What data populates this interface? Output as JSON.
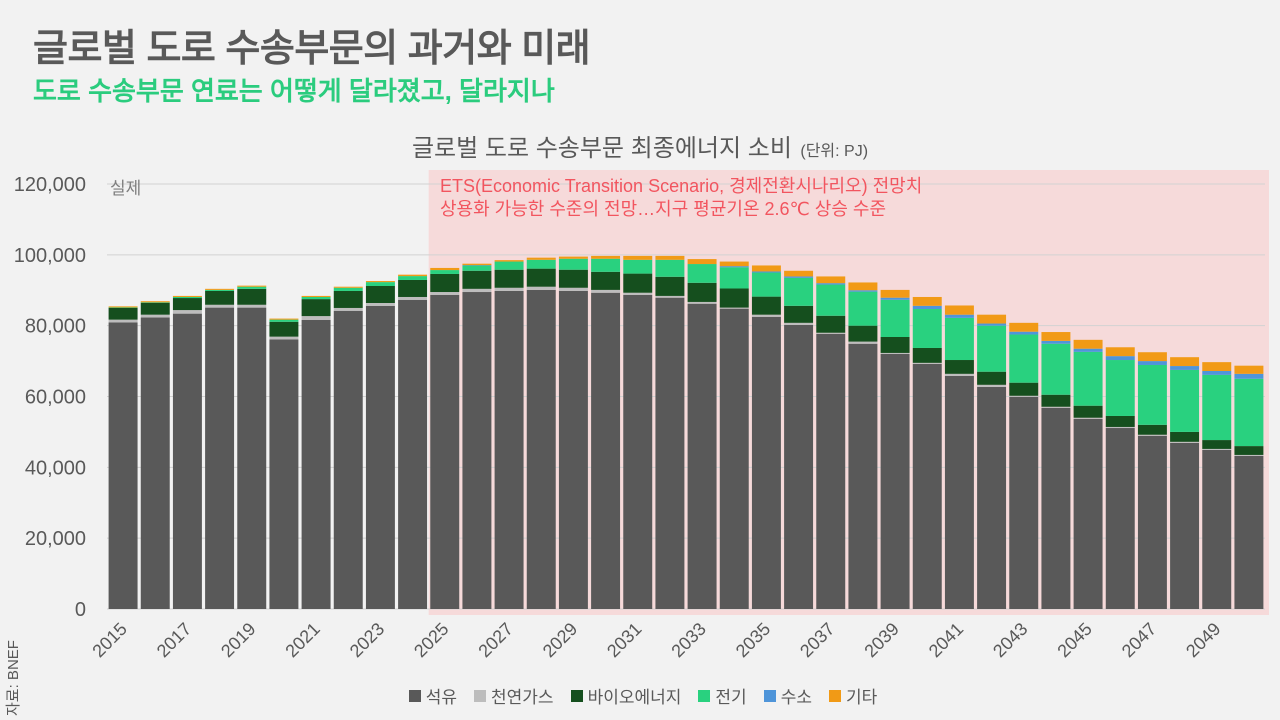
{
  "header": {
    "title": "글로벌 도로 수송부문의 과거와 미래",
    "subtitle": "도로 수송부문 연료는 어떻게 달라졌고, 달라지나"
  },
  "chart_data": {
    "type": "bar",
    "stacked": true,
    "title": "글로벌 도로 수송부문 최종에너지 소비",
    "unit_label": "(단위: PJ)",
    "xlabel": "",
    "ylabel": "",
    "ylim": [
      0,
      120000
    ],
    "yticks": [
      0,
      20000,
      40000,
      60000,
      80000,
      100000,
      120000
    ],
    "ytick_labels": [
      "0",
      "20,000",
      "40,000",
      "60,000",
      "80,000",
      "100,000",
      "120,000"
    ],
    "grid": true,
    "legend_position": "bottom",
    "x": [
      2015,
      2016,
      2017,
      2018,
      2019,
      2020,
      2021,
      2022,
      2023,
      2024,
      2025,
      2026,
      2027,
      2028,
      2029,
      2030,
      2031,
      2032,
      2033,
      2034,
      2035,
      2036,
      2037,
      2038,
      2039,
      2040,
      2041,
      2042,
      2043,
      2044,
      2045,
      2046,
      2047,
      2048,
      2049,
      2050
    ],
    "xtick_labels": [
      "2015",
      "2017",
      "2019",
      "2021",
      "2023",
      "2025",
      "2027",
      "2029",
      "2031",
      "2033",
      "2035",
      "2037",
      "2039",
      "2041",
      "2043",
      "2045",
      "2047",
      "2049"
    ],
    "forecast_start": 2025,
    "forecast_region_color": "#f6dada",
    "grid_color": "#d2d2d2",
    "annotations": {
      "actual_label": "실제",
      "forecast_line1": "ETS(Economic Transition Scenario, 경제전환시나리오) 전망치",
      "forecast_line2": "상용화 가능한 수준의 전망…지구 평균기온 2.6℃ 상승 수준"
    },
    "series": [
      {
        "key": "oil",
        "name": "석유",
        "color": "#595959",
        "values": [
          80900,
          82300,
          83400,
          85100,
          85100,
          76100,
          81600,
          84200,
          85600,
          87300,
          88700,
          89500,
          89800,
          90100,
          89800,
          89300,
          88700,
          87900,
          86200,
          84800,
          82500,
          80200,
          77700,
          74900,
          72000,
          69200,
          65800,
          62700,
          59900,
          56800,
          53700,
          51100,
          48900,
          46900,
          44900,
          43200
        ]
      },
      {
        "key": "natural-gas",
        "name": "천연가스",
        "color": "#bdbdbd",
        "values": [
          800,
          800,
          1000,
          800,
          800,
          800,
          1100,
          800,
          800,
          800,
          800,
          900,
          900,
          900,
          900,
          800,
          600,
          500,
          500,
          300,
          600,
          600,
          300,
          600,
          300,
          300,
          600,
          600,
          300,
          300,
          300,
          300,
          300,
          300,
          300,
          300
        ]
      },
      {
        "key": "bioenergy",
        "name": "바이오에너지",
        "color": "#154f1e",
        "values": [
          3400,
          3400,
          3400,
          3900,
          4500,
          4200,
          4800,
          4800,
          4800,
          4800,
          5100,
          5100,
          5100,
          5100,
          5100,
          5100,
          5400,
          5400,
          5400,
          5400,
          5100,
          4800,
          4800,
          4500,
          4500,
          4200,
          3900,
          3700,
          3700,
          3400,
          3400,
          3100,
          2800,
          2800,
          2500,
          2500
        ]
      },
      {
        "key": "electricity",
        "name": "전기",
        "color": "#29d17f",
        "values": [
          50,
          100,
          300,
          300,
          600,
          600,
          600,
          900,
          1100,
          1100,
          1100,
          1500,
          2300,
          2500,
          3100,
          3700,
          3900,
          4800,
          5300,
          6000,
          6800,
          7900,
          8800,
          9600,
          10500,
          11000,
          11900,
          13000,
          13600,
          14400,
          15200,
          15800,
          16900,
          17500,
          18400,
          19000
        ]
      },
      {
        "key": "hydrogen",
        "name": "수소",
        "color": "#4f95d9",
        "values": [
          0,
          0,
          0,
          0,
          0,
          0,
          0,
          0,
          0,
          0,
          0,
          100,
          0,
          0,
          0,
          0,
          0,
          0,
          0,
          300,
          300,
          400,
          400,
          400,
          600,
          900,
          900,
          600,
          800,
          800,
          900,
          1100,
          1100,
          1100,
          1100,
          1400
        ]
      },
      {
        "key": "other",
        "name": "기타",
        "color": "#f19a16",
        "values": [
          300,
          300,
          300,
          300,
          300,
          300,
          300,
          300,
          300,
          400,
          600,
          400,
          400,
          600,
          600,
          800,
          1100,
          1100,
          1400,
          1300,
          1700,
          1600,
          1900,
          2200,
          2200,
          2500,
          2600,
          2500,
          2500,
          2500,
          2500,
          2500,
          2500,
          2500,
          2500,
          2300
        ]
      }
    ]
  },
  "source": "자료: BNEF"
}
